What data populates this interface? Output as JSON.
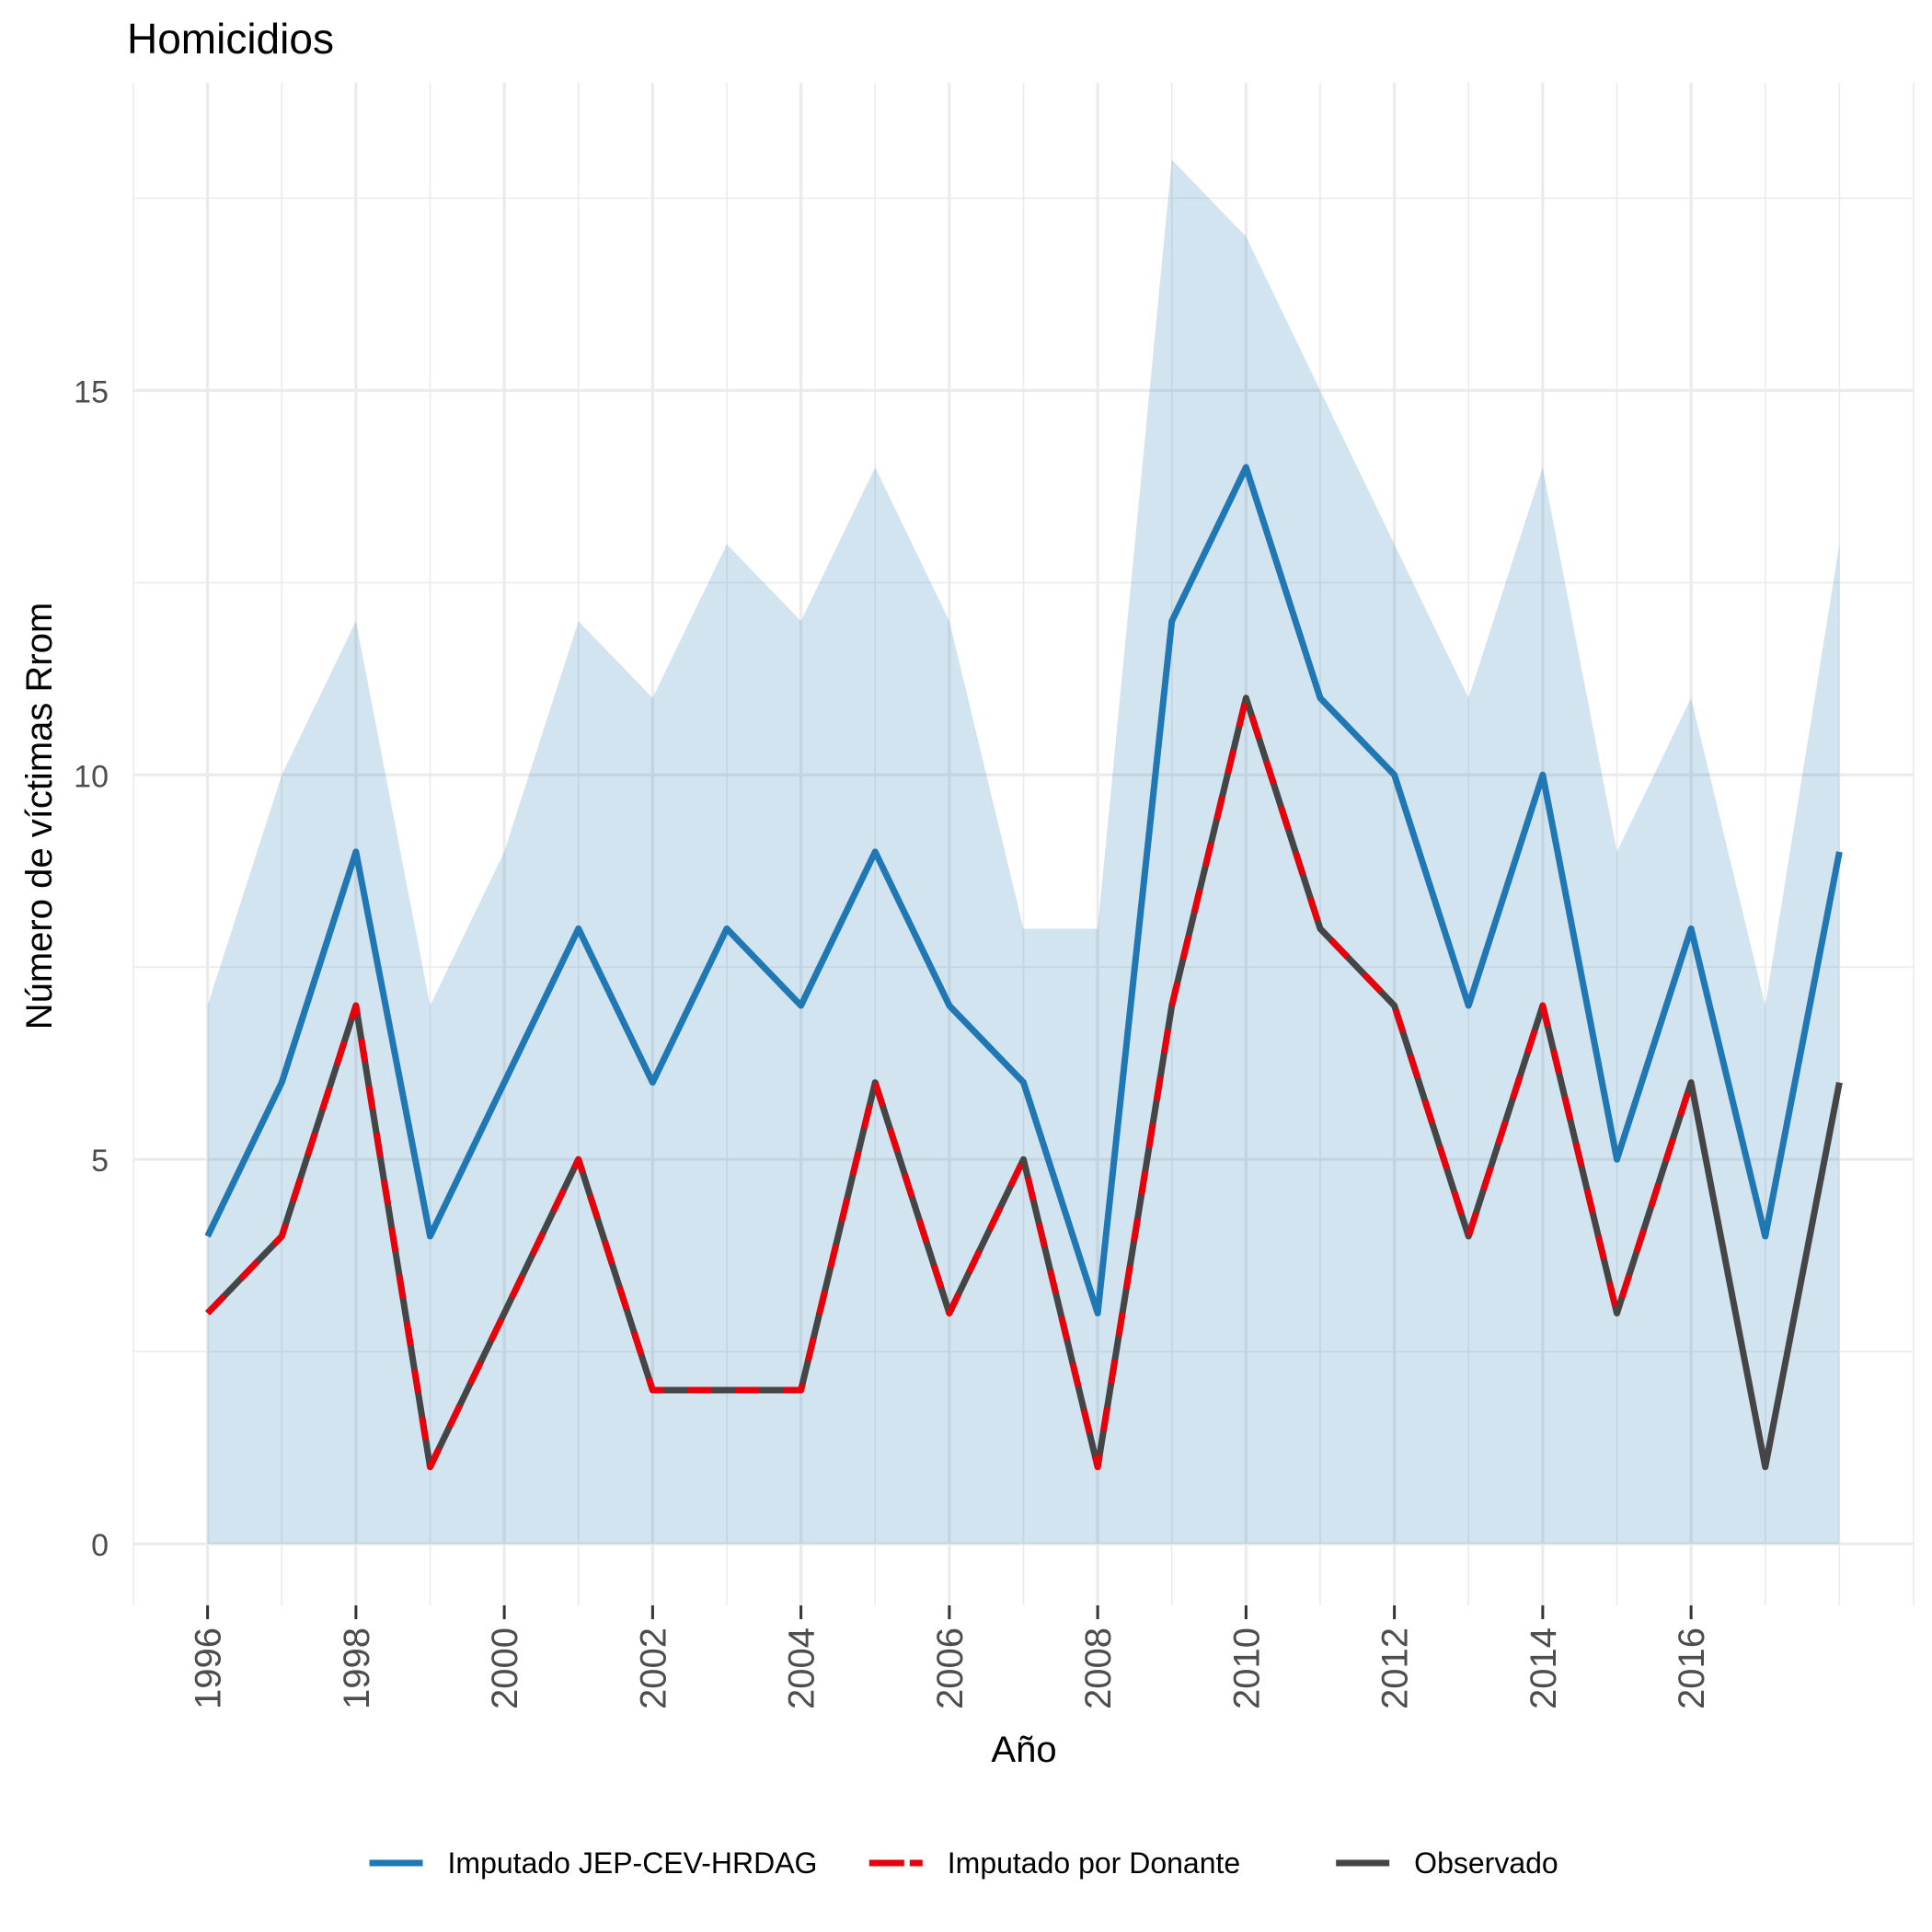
{
  "chart_data": {
    "type": "line",
    "title": "Homicidios",
    "xlabel": "Año",
    "ylabel": "Número de víctimas Rrom",
    "x": [
      1996,
      1997,
      1998,
      1999,
      2000,
      2001,
      2002,
      2003,
      2004,
      2005,
      2006,
      2007,
      2008,
      2009,
      2010,
      2011,
      2012,
      2013,
      2014,
      2015,
      2016,
      2017,
      2018
    ],
    "x_ticks": [
      "1996",
      "1998",
      "2000",
      "2002",
      "2004",
      "2006",
      "2008",
      "2010",
      "2012",
      "2014",
      "2016"
    ],
    "y_ticks": [
      "0",
      "5",
      "10",
      "15"
    ],
    "xlim": [
      1995,
      2019
    ],
    "ylim": [
      -0.8,
      19.0
    ],
    "grid": true,
    "legend_position": "bottom",
    "band": {
      "name": "Imputado JEP-CEV-HRDAG",
      "lower": [
        0,
        0,
        0,
        0,
        0,
        0,
        0,
        0,
        0,
        0,
        0,
        0,
        0,
        0,
        0,
        0,
        0,
        0,
        0,
        0,
        0,
        0,
        0
      ],
      "upper": [
        7,
        10,
        12,
        7,
        9,
        12,
        11,
        13,
        12,
        14,
        12,
        8,
        8,
        18,
        17,
        15,
        13,
        11,
        14,
        9,
        11,
        7,
        13
      ],
      "color": "#1F77B4"
    },
    "series": [
      {
        "name": "Imputado JEP-CEV-HRDAG",
        "color": "#1F77B4",
        "style": "solid",
        "values": [
          4,
          6,
          9,
          4,
          6,
          8,
          6,
          8,
          7,
          9,
          7,
          6,
          3,
          12,
          14,
          11,
          10,
          7,
          10,
          5,
          8,
          4,
          9
        ]
      },
      {
        "name": "Observado",
        "color": "#454545",
        "style": "solid",
        "values": [
          3,
          4,
          7,
          1,
          3,
          5,
          2,
          2,
          2,
          6,
          3,
          5,
          1,
          7,
          11,
          8,
          7,
          4,
          7,
          3,
          6,
          1,
          6
        ]
      },
      {
        "name": "Imputado por Donante",
        "color": "#E8000B",
        "style": "dashed",
        "values": [
          3,
          4,
          7,
          1,
          3,
          5,
          2,
          2,
          2,
          6,
          3,
          5,
          1,
          7,
          11,
          8,
          7,
          4,
          7,
          3,
          6,
          null,
          null
        ]
      }
    ],
    "legend": [
      {
        "label": "Imputado JEP-CEV-HRDAG",
        "color": "#1F77B4",
        "style": "solid"
      },
      {
        "label": "Imputado por Donante",
        "color": "#E8000B",
        "style": "dashed"
      },
      {
        "label": "Observado",
        "color": "#454545",
        "style": "solid"
      }
    ]
  }
}
